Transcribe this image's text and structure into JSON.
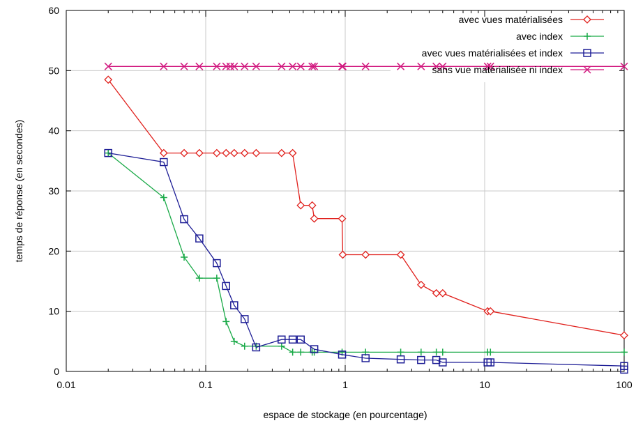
{
  "chart_data": {
    "type": "line",
    "title": "",
    "xlabel": "espace de stockage (en pourcentage)",
    "ylabel": "temps de réponse (en secondes)",
    "xscale": "log",
    "xlim": [
      0.01,
      100
    ],
    "ylim": [
      0,
      60
    ],
    "x_ticks": [
      "0.01",
      "0.1",
      "1",
      "10",
      "100"
    ],
    "y_ticks": [
      "0",
      "10",
      "20",
      "30",
      "40",
      "50",
      "60"
    ],
    "grid": true,
    "legend_position": "top-right",
    "series": [
      {
        "name": "avec vues matérialisées",
        "color": "#e0201c",
        "marker": "diamond",
        "x": [
          0.02,
          0.05,
          0.07,
          0.09,
          0.12,
          0.14,
          0.16,
          0.19,
          0.23,
          0.35,
          0.42,
          0.48,
          0.58,
          0.6,
          0.95,
          0.96,
          1.4,
          2.5,
          3.5,
          4.5,
          5.0,
          10.5,
          11.0,
          100
        ],
        "y": [
          48.5,
          36.3,
          36.3,
          36.3,
          36.3,
          36.3,
          36.3,
          36.3,
          36.3,
          36.3,
          36.3,
          27.6,
          27.6,
          25.4,
          25.4,
          19.4,
          19.4,
          19.4,
          14.4,
          13.0,
          13.0,
          10.0,
          10.0,
          6.0
        ]
      },
      {
        "name": "avec index",
        "color": "#1aaa48",
        "marker": "plus",
        "x": [
          0.02,
          0.05,
          0.07,
          0.09,
          0.12,
          0.14,
          0.16,
          0.19,
          0.23,
          0.35,
          0.42,
          0.48,
          0.58,
          0.6,
          0.95,
          1.4,
          2.5,
          3.5,
          4.5,
          5.0,
          10.5,
          11.0,
          100
        ],
        "y": [
          36.3,
          28.9,
          19.0,
          15.5,
          15.5,
          8.3,
          5.0,
          4.2,
          4.2,
          4.2,
          3.2,
          3.2,
          3.2,
          3.2,
          3.2,
          3.2,
          3.2,
          3.2,
          3.2,
          3.2,
          3.2,
          3.2,
          3.2
        ]
      },
      {
        "name": "avec vues matérialisées et index",
        "color": "#1e1e96",
        "marker": "square",
        "x": [
          0.02,
          0.05,
          0.07,
          0.09,
          0.12,
          0.14,
          0.16,
          0.19,
          0.23,
          0.35,
          0.42,
          0.48,
          0.6,
          0.95,
          1.4,
          2.5,
          3.5,
          4.5,
          5.0,
          10.5,
          11.0,
          100,
          100
        ],
        "y": [
          36.3,
          34.8,
          25.3,
          22.1,
          18.0,
          14.2,
          11.0,
          8.7,
          4.0,
          5.3,
          5.3,
          5.3,
          3.7,
          2.8,
          2.2,
          2.0,
          1.9,
          1.9,
          1.5,
          1.5,
          1.5,
          0.9,
          0.3
        ]
      },
      {
        "name": "sans vue matérialisée ni index",
        "color": "#d1197f",
        "marker": "cross",
        "x": [
          0.02,
          0.05,
          0.07,
          0.09,
          0.12,
          0.14,
          0.15,
          0.16,
          0.19,
          0.23,
          0.35,
          0.42,
          0.48,
          0.58,
          0.6,
          0.95,
          0.96,
          1.4,
          2.5,
          3.5,
          4.5,
          5.0,
          10.5,
          11.0,
          100
        ],
        "y": [
          50.7,
          50.7,
          50.7,
          50.7,
          50.7,
          50.7,
          50.7,
          50.7,
          50.7,
          50.7,
          50.7,
          50.7,
          50.7,
          50.7,
          50.7,
          50.7,
          50.7,
          50.7,
          50.7,
          50.7,
          50.7,
          50.7,
          50.7,
          50.7,
          50.7
        ]
      }
    ]
  }
}
